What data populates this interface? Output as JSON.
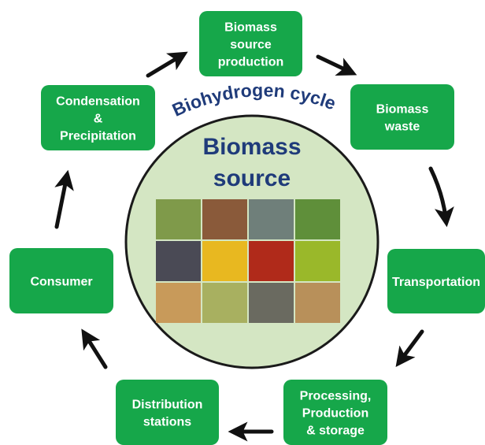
{
  "title": "Biohydrogen cycle",
  "center": {
    "lines": [
      "Biomass",
      "source"
    ]
  },
  "nodes": [
    {
      "lines": [
        "Biomass",
        "source",
        "production"
      ]
    },
    {
      "lines": [
        "Biomass",
        "waste"
      ]
    },
    {
      "lines": [
        "Transportation"
      ]
    },
    {
      "lines": [
        "Processing,",
        "Production",
        "& storage"
      ]
    },
    {
      "lines": [
        "Distribution",
        "stations"
      ]
    },
    {
      "lines": [
        "Consumer"
      ]
    },
    {
      "lines": [
        "Condensation",
        "&",
        "Precipitation"
      ]
    }
  ]
}
